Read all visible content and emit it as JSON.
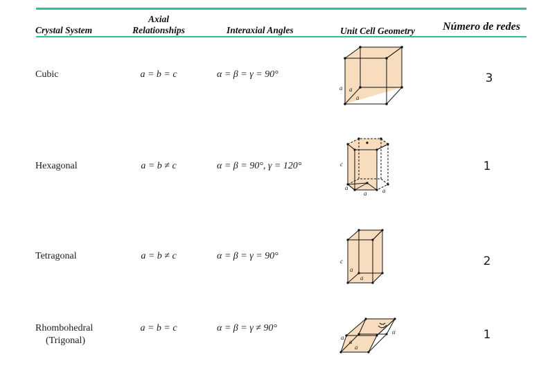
{
  "headers": {
    "crystal_system": "Crystal System",
    "axial_line1": "Axial",
    "axial_line2": "Relationships",
    "interaxial": "Interaxial Angles",
    "geometry": "Unit Cell Geometry",
    "count": "Número de redes"
  },
  "rows": [
    {
      "system": "Cubic",
      "system_line2": "",
      "axial": "a = b = c",
      "angles": "α = β = γ = 90°",
      "count": "3",
      "geometry_labels": [
        "a",
        "a",
        "a"
      ]
    },
    {
      "system": "Hexagonal",
      "system_line2": "",
      "axial": "a = b ≠ c",
      "angles": "α = β = 90°, γ = 120°",
      "count": "1",
      "geometry_labels": [
        "c",
        "a",
        "a",
        "a"
      ]
    },
    {
      "system": "Tetragonal",
      "system_line2": "",
      "axial": "a = b ≠ c",
      "angles": "α = β = γ = 90°",
      "count": "2",
      "geometry_labels": [
        "c",
        "a",
        "a"
      ]
    },
    {
      "system": "Rhombohedral",
      "system_line2": "(Trigonal)",
      "axial": "a = b = c",
      "angles": "α = β = γ ≠ 90°",
      "count": "1",
      "geometry_labels": [
        "a",
        "a",
        "a",
        "α"
      ]
    }
  ],
  "colors": {
    "rule": "#2bbf9a",
    "cell_fill": "#f7dcbd",
    "text": "#1a1a1a"
  }
}
